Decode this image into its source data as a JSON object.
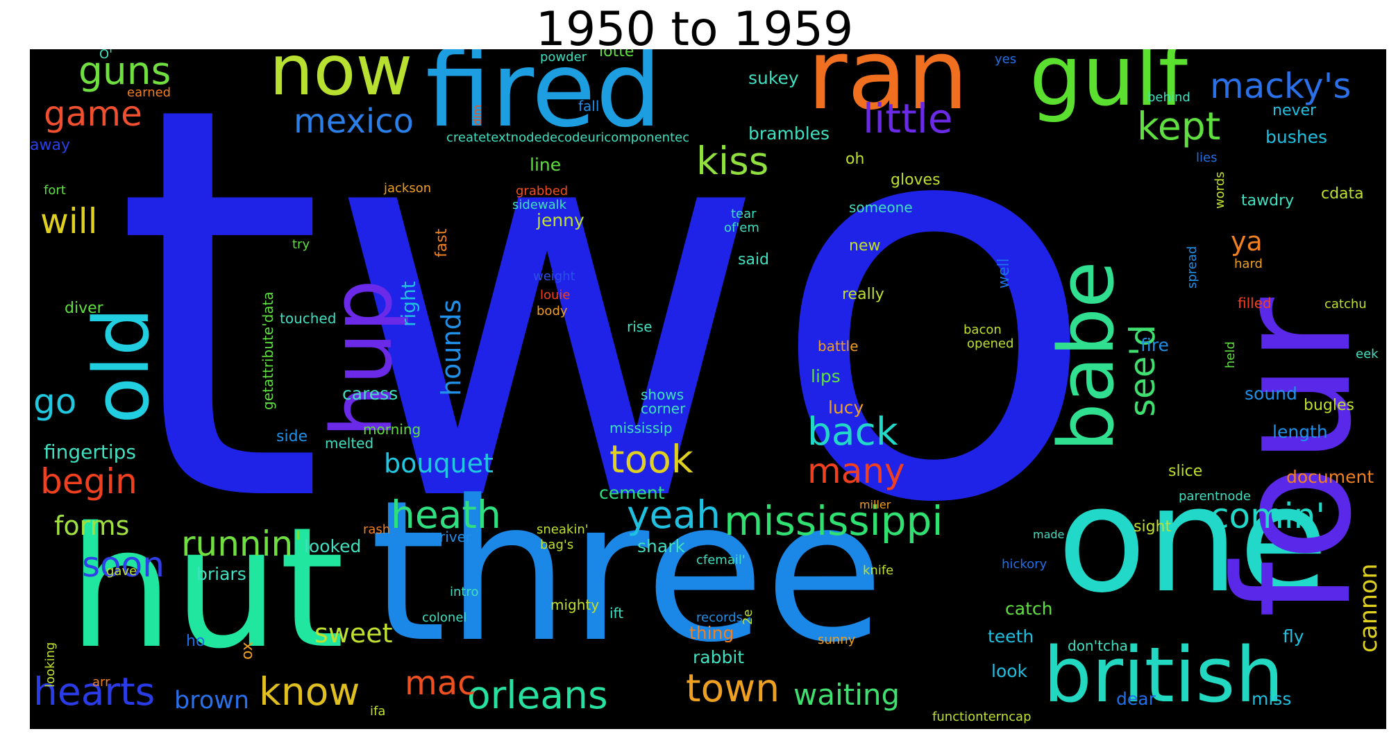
{
  "title": "1950 to 1959",
  "words": [
    {
      "text": "two",
      "color": "#1f23e8"
    },
    {
      "text": "three",
      "color": "#1b87e6"
    },
    {
      "text": "hut",
      "color": "#20e6a0"
    },
    {
      "text": "one",
      "color": "#22d8c8"
    },
    {
      "text": "four",
      "color": "#5a28e8"
    },
    {
      "text": "british",
      "color": "#22d8c0"
    },
    {
      "text": "fired",
      "color": "#1c9ee0"
    },
    {
      "text": "ran",
      "color": "#f07020"
    },
    {
      "text": "gulf",
      "color": "#5ce030"
    },
    {
      "text": "now",
      "color": "#b8e030"
    },
    {
      "text": "babe",
      "color": "#30e090"
    },
    {
      "text": "hup",
      "color": "#6a2ae8"
    },
    {
      "text": "old",
      "color": "#22cfe0"
    },
    {
      "text": "macky's",
      "color": "#2a70e8"
    },
    {
      "text": "mississippi",
      "color": "#30e070"
    },
    {
      "text": "little",
      "color": "#6a2ae8"
    },
    {
      "text": "mexico",
      "color": "#2a80e8"
    },
    {
      "text": "kept",
      "color": "#60e040"
    },
    {
      "text": "game",
      "color": "#f05030"
    },
    {
      "text": "guns",
      "color": "#70e040"
    },
    {
      "text": "kiss",
      "color": "#90e040"
    },
    {
      "text": "see'd",
      "color": "#40e070"
    },
    {
      "text": "hearts",
      "color": "#2a3ce8"
    },
    {
      "text": "orleans",
      "color": "#28e0a0"
    },
    {
      "text": "town",
      "color": "#f0a020"
    },
    {
      "text": "know",
      "color": "#e0c020"
    },
    {
      "text": "mac",
      "color": "#f05020"
    },
    {
      "text": "heath",
      "color": "#30e080"
    },
    {
      "text": "took",
      "color": "#e0d020"
    },
    {
      "text": "yeah",
      "color": "#20c0e0"
    },
    {
      "text": "back",
      "color": "#22d8c8"
    },
    {
      "text": "many",
      "color": "#f04020"
    },
    {
      "text": "comin'",
      "color": "#22d8c8"
    },
    {
      "text": "runnin'",
      "color": "#70e040"
    },
    {
      "text": "soon",
      "color": "#3040e8"
    },
    {
      "text": "begin",
      "color": "#f04020"
    },
    {
      "text": "will",
      "color": "#e0d020"
    },
    {
      "text": "go",
      "color": "#20c8e0"
    },
    {
      "text": "forms",
      "color": "#a0e040"
    },
    {
      "text": "bouquet",
      "color": "#20c8e0"
    },
    {
      "text": "hounds",
      "color": "#2090e8"
    },
    {
      "text": "waiting",
      "color": "#40e070"
    },
    {
      "text": "brown",
      "color": "#2a70e8"
    },
    {
      "text": "sweet",
      "color": "#c0e030"
    },
    {
      "text": "cannon",
      "color": "#e0d020"
    },
    {
      "text": "ya",
      "color": "#f08020"
    },
    {
      "text": "fingertips",
      "color": "#40e0c0"
    },
    {
      "text": "right",
      "color": "#20c0e0"
    },
    {
      "text": "bushes",
      "color": "#20c0e0"
    },
    {
      "text": "never",
      "color": "#20c0e0"
    },
    {
      "text": "brambles",
      "color": "#40e0c0"
    },
    {
      "text": "sukey",
      "color": "#40e0c0"
    },
    {
      "text": "caress",
      "color": "#40e0c0"
    },
    {
      "text": "cement",
      "color": "#30e080"
    },
    {
      "text": "length",
      "color": "#2090e8"
    },
    {
      "text": "sound",
      "color": "#2090e8"
    },
    {
      "text": "document",
      "color": "#f08020"
    },
    {
      "text": "lotte",
      "color": "#60e040"
    },
    {
      "text": "line",
      "color": "#60e040"
    },
    {
      "text": "jenny",
      "color": "#c0e030"
    },
    {
      "text": "looked",
      "color": "#40e0c0"
    },
    {
      "text": "briars",
      "color": "#40e0c0"
    },
    {
      "text": "catch",
      "color": "#60e040"
    },
    {
      "text": "teeth",
      "color": "#20c0e0"
    },
    {
      "text": "fire",
      "color": "#2090e8"
    },
    {
      "text": "lips",
      "color": "#60e040"
    },
    {
      "text": "lucy",
      "color": "#f0a020"
    },
    {
      "text": "shark",
      "color": "#40e0c0"
    },
    {
      "text": "rabbit",
      "color": "#40e0c0"
    },
    {
      "text": "thing",
      "color": "#f08020"
    },
    {
      "text": "look",
      "color": "#20c0e0"
    },
    {
      "text": "dear",
      "color": "#2070e8"
    },
    {
      "text": "miss",
      "color": "#20c0e0"
    },
    {
      "text": "fly",
      "color": "#20c0e0"
    },
    {
      "text": "bugles",
      "color": "#c0e030"
    },
    {
      "text": "slice",
      "color": "#c0e030"
    },
    {
      "text": "sight",
      "color": "#c0e030"
    },
    {
      "text": "tawdry",
      "color": "#40e0c0"
    },
    {
      "text": "cdata",
      "color": "#c0e030"
    },
    {
      "text": "oh",
      "color": "#c0e030"
    },
    {
      "text": "gloves",
      "color": "#c0e030"
    },
    {
      "text": "said",
      "color": "#40e0c0"
    },
    {
      "text": "new",
      "color": "#c0e030"
    },
    {
      "text": "really",
      "color": "#c0e030"
    },
    {
      "text": "battle",
      "color": "#f0a020"
    },
    {
      "text": "someone",
      "color": "#40e0c0"
    },
    {
      "text": "mississip",
      "color": "#40e0c0"
    },
    {
      "text": "shows",
      "color": "#40e0c0"
    },
    {
      "text": "corner",
      "color": "#40e0c0"
    },
    {
      "text": "rise",
      "color": "#40e0c0"
    },
    {
      "text": "diver",
      "color": "#60e040"
    },
    {
      "text": "touched",
      "color": "#40e0c0"
    },
    {
      "text": "side",
      "color": "#2090e8"
    },
    {
      "text": "melted",
      "color": "#40e0c0"
    },
    {
      "text": "morning",
      "color": "#60e040"
    },
    {
      "text": "getattribute'data",
      "color": "#60e040"
    },
    {
      "text": "fast",
      "color": "#f08020"
    },
    {
      "text": "try",
      "color": "#60e040"
    },
    {
      "text": "fort",
      "color": "#60e040"
    },
    {
      "text": "away",
      "color": "#2a40e8"
    },
    {
      "text": "earned",
      "color": "#f08020"
    },
    {
      "text": "powder",
      "color": "#40e0c0"
    },
    {
      "text": "fall",
      "color": "#2090e8"
    },
    {
      "text": "createtextnodedecodeuricomponentec",
      "color": "#40e0c0"
    },
    {
      "text": "jackson",
      "color": "#f0a020"
    },
    {
      "text": "grabbed",
      "color": "#f05020"
    },
    {
      "text": "sidewalk",
      "color": "#40e0c0"
    },
    {
      "text": "weight",
      "color": "#2a50e8"
    },
    {
      "text": "louie",
      "color": "#f04020"
    },
    {
      "text": "body",
      "color": "#f0a020"
    },
    {
      "text": "tear",
      "color": "#40e0c0"
    },
    {
      "text": "of'em",
      "color": "#40e0c0"
    },
    {
      "text": "yes",
      "color": "#2070e8"
    },
    {
      "text": "behind",
      "color": "#40e0c0"
    },
    {
      "text": "lies",
      "color": "#2070e8"
    },
    {
      "text": "words",
      "color": "#c0e030"
    },
    {
      "text": "hard",
      "color": "#f0a020"
    },
    {
      "text": "filled",
      "color": "#f04020"
    },
    {
      "text": "catchu",
      "color": "#c0e030"
    },
    {
      "text": "eek",
      "color": "#40e0c0"
    },
    {
      "text": "held",
      "color": "#60e040"
    },
    {
      "text": "spread",
      "color": "#2090e8"
    },
    {
      "text": "well",
      "color": "#2070e8"
    },
    {
      "text": "bacon",
      "color": "#c0e030"
    },
    {
      "text": "opened",
      "color": "#c0e030"
    },
    {
      "text": "hickory",
      "color": "#2070e8"
    },
    {
      "text": "made",
      "color": "#40e0c0"
    },
    {
      "text": "knife",
      "color": "#c0e030"
    },
    {
      "text": "don'tcha",
      "color": "#40e0c0"
    },
    {
      "text": "parentnode",
      "color": "#40e0c0"
    },
    {
      "text": "functionterncap",
      "color": "#c0e030"
    },
    {
      "text": "records",
      "color": "#2090e8"
    },
    {
      "text": "sunny",
      "color": "#f0a020"
    },
    {
      "text": "miller",
      "color": "#f0a020"
    },
    {
      "text": "cfemail'",
      "color": "#40e0c0"
    },
    {
      "text": "sneakin'",
      "color": "#c0e030"
    },
    {
      "text": "bag's",
      "color": "#c0e030"
    },
    {
      "text": "ift",
      "color": "#40e0c0"
    },
    {
      "text": "mighty",
      "color": "#c0e030"
    },
    {
      "text": "colonel",
      "color": "#40e0c0"
    },
    {
      "text": "intro",
      "color": "#40e0c0"
    },
    {
      "text": "river",
      "color": "#2090e8"
    },
    {
      "text": "rash",
      "color": "#f08020"
    },
    {
      "text": "gave",
      "color": "#c0e030"
    },
    {
      "text": "ho",
      "color": "#2070e8"
    },
    {
      "text": "ox",
      "color": "#f0a020"
    },
    {
      "text": "arr",
      "color": "#f08020"
    },
    {
      "text": "ifa",
      "color": "#c0e030"
    },
    {
      "text": "looking",
      "color": "#c0e030"
    },
    {
      "text": "2e",
      "color": "#c0e030"
    },
    {
      "text": "O'",
      "color": "#40e0c0"
    },
    {
      "text": "dim",
      "color": "#f05020"
    }
  ]
}
